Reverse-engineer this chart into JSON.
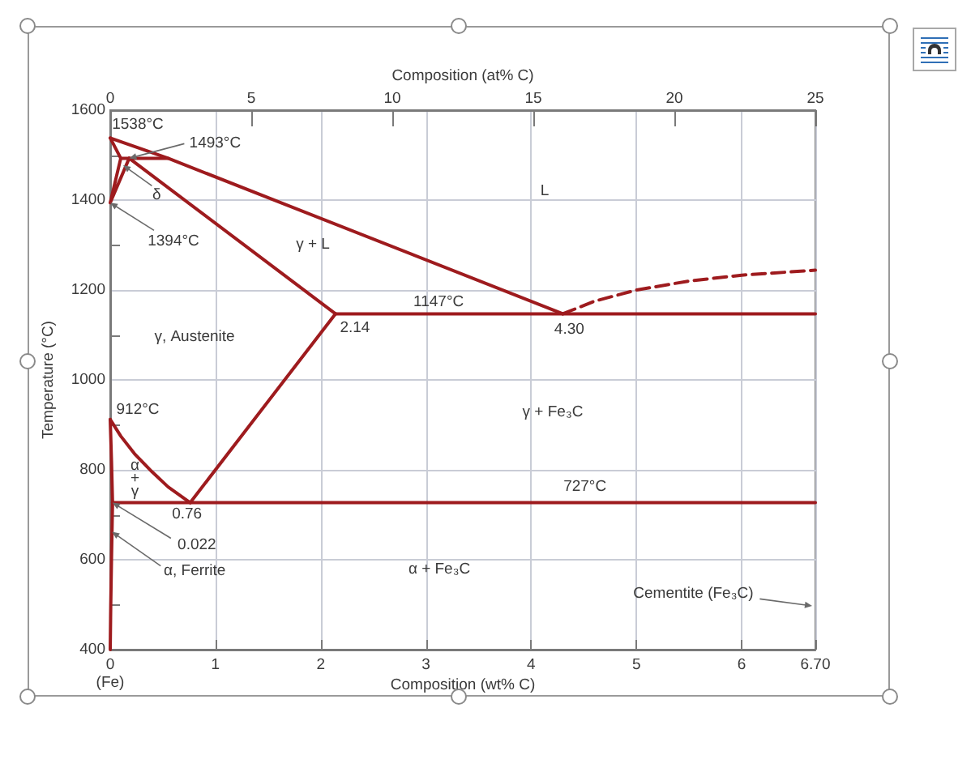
{
  "chart_data": {
    "type": "line",
    "xlabel": "Composition (wt% C)",
    "x2label": "Composition (at% C)",
    "ylabel": "Temperature (°C)",
    "xlim": [
      0,
      6.7
    ],
    "xticks": [
      {
        "value": 0,
        "label": "0\n(Fe)"
      },
      1,
      2,
      3,
      4,
      5,
      6,
      {
        "value": 6.7,
        "label": "6.70"
      }
    ],
    "x2lim": [
      0,
      25
    ],
    "x2ticks": [
      0,
      5,
      10,
      15,
      20,
      25
    ],
    "ylim": [
      400,
      1600
    ],
    "yticks": [
      400,
      {
        "value": 500,
        "label": null
      },
      600,
      {
        "value": 700,
        "label": null
      },
      800,
      {
        "value": 900,
        "label": null
      },
      1000,
      {
        "value": 1100,
        "label": null
      },
      1200,
      {
        "value": 1300,
        "label": null
      },
      1400,
      {
        "value": 1500,
        "label": null
      },
      1600
    ],
    "grid": true,
    "marker": "none",
    "line_style": "solid",
    "series": [
      {
        "color": "#9e1b1e",
        "x": [
          0,
          0.55,
          4.3
        ],
        "values": [
          1538,
          1493,
          1147
        ]
      },
      {
        "color": "#9e1b1e",
        "line_style": "dashed",
        "x": [
          4.3,
          4.6,
          5.0,
          5.5,
          6.0,
          6.7
        ],
        "values": [
          1147,
          1175,
          1200,
          1220,
          1233,
          1244
        ]
      },
      {
        "color": "#9e1b1e",
        "x": [
          2.14,
          6.7
        ],
        "values": [
          1147,
          1147
        ]
      },
      {
        "color": "#9e1b1e",
        "x": [
          0.18,
          2.14
        ],
        "values": [
          1493,
          1147
        ]
      },
      {
        "color": "#9e1b1e",
        "x": [
          0.1,
          0.55
        ],
        "values": [
          1493,
          1493
        ]
      },
      {
        "color": "#9e1b1e",
        "x": [
          0,
          0.1,
          0,
          0.18
        ],
        "values": [
          1538,
          1493,
          1394,
          1493
        ]
      },
      {
        "color": "#9e1b1e",
        "x": [
          0.76,
          2.14
        ],
        "values": [
          727,
          1147
        ]
      },
      {
        "color": "#9e1b1e",
        "x": [
          0.022,
          6.7
        ],
        "values": [
          727,
          727
        ]
      },
      {
        "color": "#9e1b1e",
        "x": [
          0,
          0.1,
          0.23,
          0.4,
          0.55,
          0.76
        ],
        "values": [
          912,
          875,
          836,
          795,
          762,
          727
        ]
      },
      {
        "color": "#9e1b1e",
        "x": [
          0,
          0.012,
          0.022,
          0.012,
          0.005,
          0
        ],
        "values": [
          912,
          820,
          727,
          600,
          500,
          400
        ]
      }
    ],
    "annotations": [
      {
        "text": "1538°C",
        "x": 0,
        "y": 1538
      },
      {
        "text": "1493°C",
        "x": 0.18,
        "y": 1493
      },
      "δ",
      {
        "text": "1394°C",
        "x": 0,
        "y": 1394
      },
      "γ + L",
      "L",
      {
        "text": "1147°C",
        "x": 3.12,
        "y": 1147
      },
      {
        "text": "2.14",
        "x": 2.14,
        "y": 1147
      },
      {
        "text": "4.30",
        "x": 4.3,
        "y": 1147
      },
      "γ, Austenite",
      {
        "text": "912°C",
        "x": 0,
        "y": 912
      },
      "α\n+\nγ",
      {
        "text": "0.76",
        "x": 0.76,
        "y": 727
      },
      {
        "text": "0.022",
        "x": 0.022,
        "y": 727
      },
      {
        "text": "α, Ferrite",
        "x": 0.017,
        "y": 662
      },
      "α + Fe₃C",
      "γ + Fe₃C",
      {
        "text": "727°C",
        "x": 4.51,
        "y": 727
      },
      "Cementite (Fe₃C)"
    ]
  }
}
